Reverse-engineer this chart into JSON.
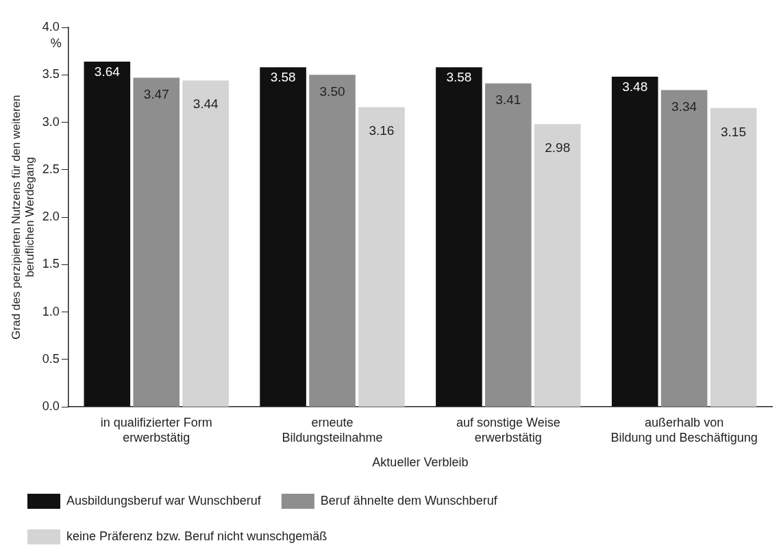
{
  "chart_data": {
    "type": "bar",
    "xlabel": "Aktueller Verbleib",
    "ylabel": "Grad des perzipierten Nutzens für den weiteren beruflichen Werdegang",
    "categories": [
      "in qualifizierter Form\nerwerbstätig",
      "erneute\nBildungsteilnahme",
      "auf sonstige Weise\nerwerbstätig",
      "außerhalb von\nBildung und Beschäftigung"
    ],
    "series": [
      {
        "name": "Ausbildungsberuf war Wunschberuf",
        "color": "#111111",
        "values": [
          3.64,
          3.58,
          3.58,
          3.48
        ],
        "value_labels": [
          "3.64",
          "3.58",
          "3.58",
          "3.48"
        ]
      },
      {
        "name": "Beruf ähnelte dem Wunschberuf",
        "color": "#8e8e8e",
        "values": [
          3.47,
          3.5,
          3.41,
          3.34
        ],
        "value_labels": [
          "3.47",
          "3.50",
          "3.41",
          "3.34"
        ]
      },
      {
        "name": "keine Präferenz bzw. Beruf nicht wunschgemäß",
        "color": "#d4d4d4",
        "values": [
          3.44,
          3.16,
          2.98,
          3.15
        ],
        "value_labels": [
          "3.44",
          "3.16",
          "2.98",
          "3.15"
        ]
      }
    ],
    "ylim": [
      0,
      4
    ],
    "yticks": [
      {
        "value": 0,
        "label": "0.0"
      },
      0.5,
      {
        "value": 1,
        "label": "1.0"
      },
      1.5,
      {
        "value": 2,
        "label": "2.0"
      },
      2.5,
      {
        "value": 3,
        "label": "3.0"
      },
      3.5,
      {
        "value": 4,
        "label": "4.0"
      }
    ],
    "annotations": [
      "%"
    ],
    "grid": false,
    "legend": "bottom"
  }
}
